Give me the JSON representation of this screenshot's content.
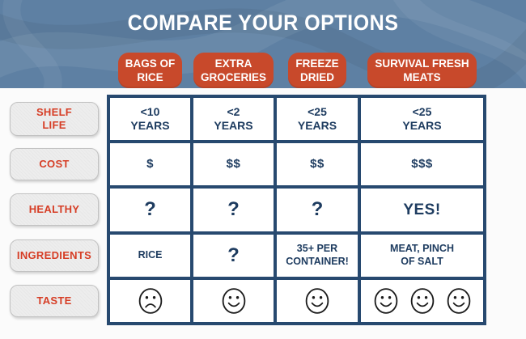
{
  "title": "COMPARE YOUR OPTIONS",
  "columns": [
    "BAGS OF\nRICE",
    "EXTRA\nGROCERIES",
    "FREEZE\nDRIED",
    "SURVIVAL FRESH\nMEATS"
  ],
  "rows": [
    {
      "label": "SHELF\nLIFE",
      "cells": [
        {
          "text": "<10\nYEARS"
        },
        {
          "text": "<2\nYEARS"
        },
        {
          "text": "<25\nYEARS"
        },
        {
          "text": "<25\nYEARS"
        }
      ]
    },
    {
      "label": "COST",
      "cells": [
        {
          "text": "$"
        },
        {
          "text": "$$"
        },
        {
          "text": "$$"
        },
        {
          "text": "$$$"
        }
      ]
    },
    {
      "label": "HEALTHY",
      "cells": [
        {
          "text": "?"
        },
        {
          "text": "?"
        },
        {
          "text": "?"
        },
        {
          "text": "YES!"
        }
      ]
    },
    {
      "label": "INGREDIENTS",
      "cells": [
        {
          "text": "RICE"
        },
        {
          "text": "?"
        },
        {
          "text": "35+ PER\nCONTAINER!"
        },
        {
          "text": "MEAT, PINCH\nOF SALT"
        }
      ]
    },
    {
      "label": "TASTE",
      "cells": [
        {
          "faces": [
            "sad"
          ]
        },
        {
          "faces": [
            "happy"
          ]
        },
        {
          "faces": [
            "happy"
          ]
        },
        {
          "faces": [
            "happy",
            "happy",
            "happy"
          ]
        }
      ]
    }
  ],
  "colors": {
    "hero_bg": "#5E80A3",
    "pill_red": "#C8492B",
    "table_border": "#27496F",
    "cell_text": "#1E3C60",
    "label_red": "#D63D25"
  }
}
